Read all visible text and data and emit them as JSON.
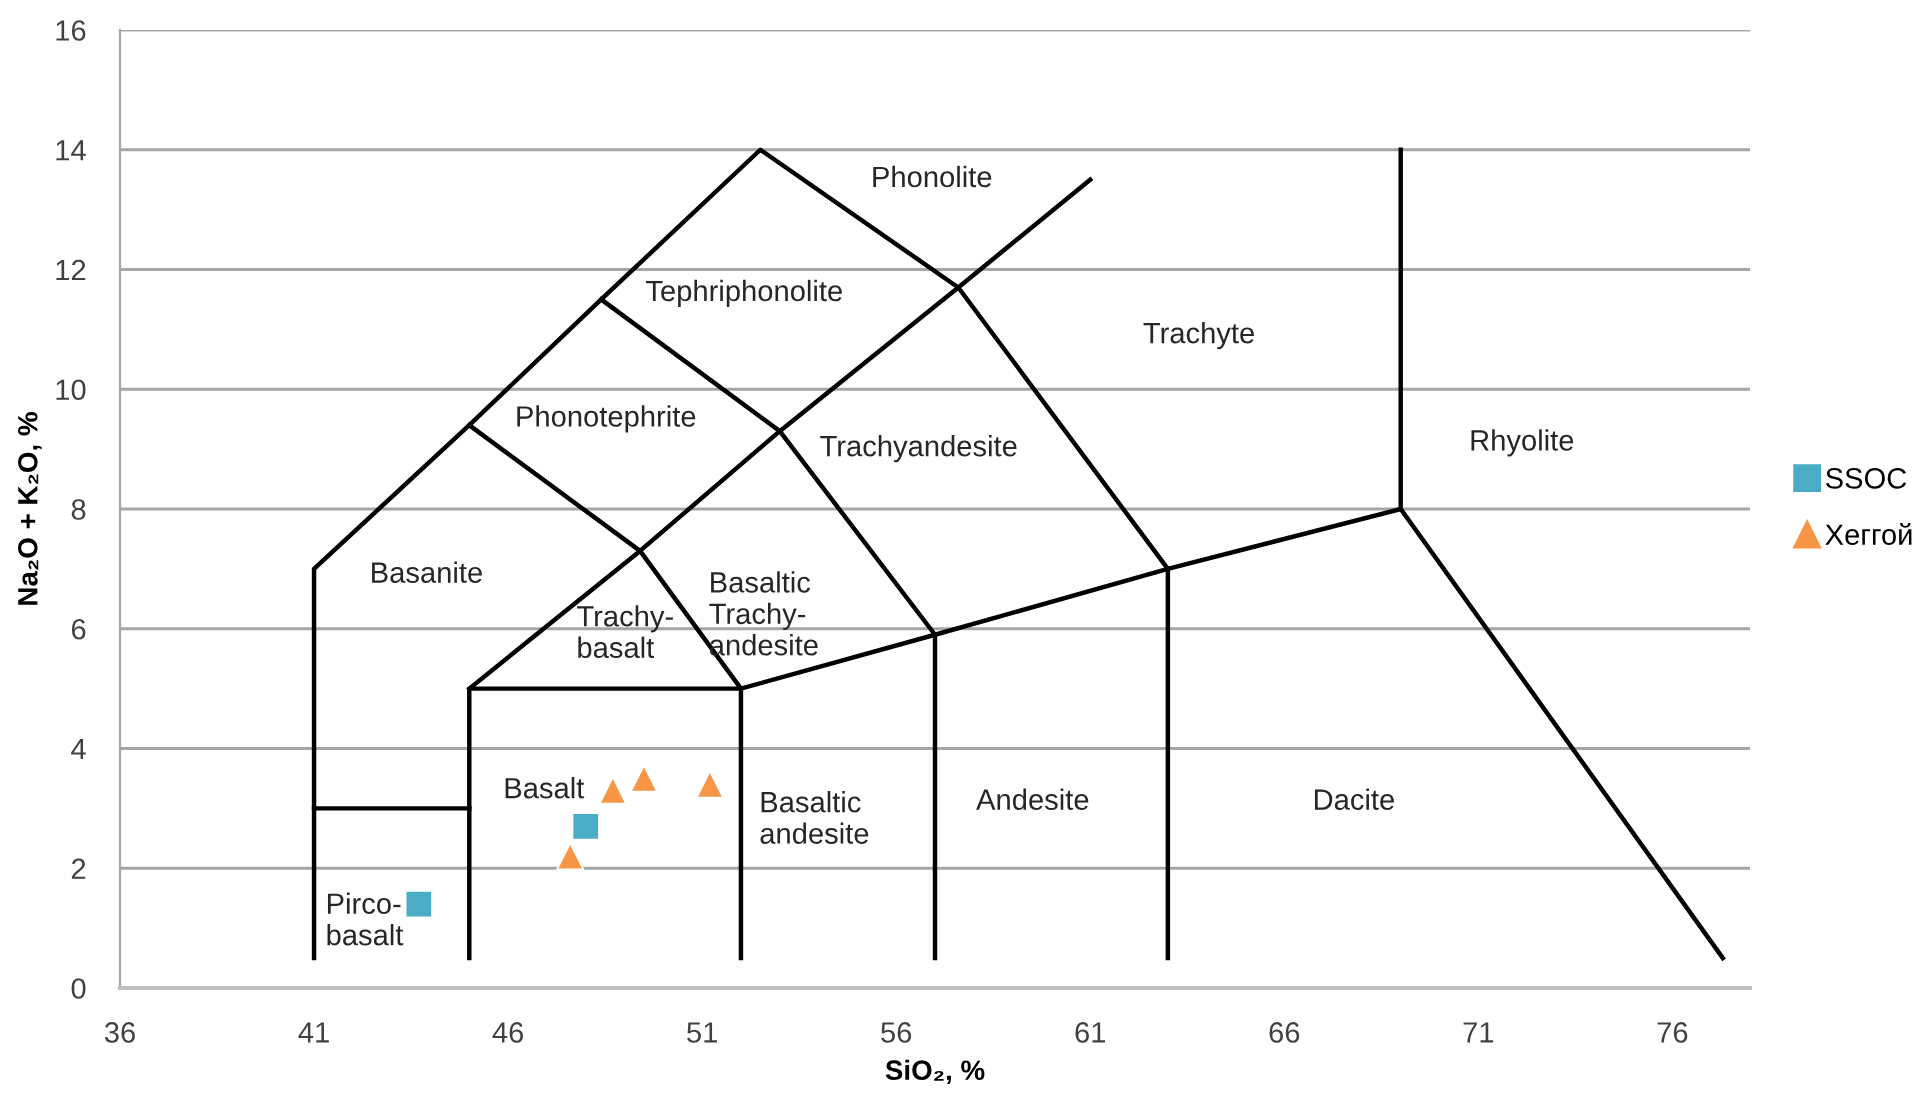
{
  "chart_data": {
    "type": "scatter",
    "xlabel": "SiO₂, %",
    "ylabel": "Na₂O + K₂O, %",
    "xlim": [
      36,
      78
    ],
    "xticks": [
      36,
      41,
      46,
      51,
      56,
      61,
      66,
      71,
      76
    ],
    "ylim": [
      0,
      16
    ],
    "yticks": [
      0,
      2,
      4,
      6,
      8,
      10,
      12,
      14,
      16
    ],
    "grid": "y",
    "legend": "right",
    "series": [
      {
        "type": "line",
        "color": "#000000",
        "x": [
          41,
          41,
          45,
          48.4,
          52.5,
          57.6,
          63,
          63
        ],
        "values": [
          0.5,
          7,
          9.4,
          11.5,
          14,
          11.7,
          7,
          0.5
        ]
      },
      {
        "type": "line",
        "color": "#000000",
        "x": [
          41,
          45
        ],
        "values": [
          3,
          3
        ]
      },
      {
        "type": "line",
        "color": "#000000",
        "x": [
          45,
          45,
          52,
          52
        ],
        "values": [
          0.5,
          5,
          5,
          0.5
        ]
      },
      {
        "type": "line",
        "color": "#000000",
        "x": [
          45,
          49.4,
          53,
          57.6,
          61
        ],
        "values": [
          5,
          7.3,
          9.3,
          11.7,
          13.5
        ]
      },
      {
        "type": "line",
        "color": "#000000",
        "x": [
          52,
          57,
          63,
          69,
          77.3
        ],
        "values": [
          5,
          5.9,
          7,
          8,
          0.5
        ]
      },
      {
        "type": "line",
        "color": "#000000",
        "x": [
          57,
          57
        ],
        "values": [
          0.5,
          5.9
        ]
      },
      {
        "type": "line",
        "color": "#000000",
        "x": [
          69,
          69
        ],
        "values": [
          8,
          14
        ]
      },
      {
        "type": "line",
        "color": "#000000",
        "x": [
          52,
          49.4,
          45
        ],
        "values": [
          5,
          7.3,
          9.4
        ]
      },
      {
        "type": "line",
        "color": "#000000",
        "x": [
          57,
          53,
          48.4
        ],
        "values": [
          5.9,
          9.3,
          11.5
        ]
      },
      {
        "name": "SSOC",
        "color": "#4bacc6",
        "marker": "square",
        "x": [
          43.7,
          48.0
        ],
        "values": [
          1.4,
          2.7
        ]
      },
      {
        "name": "Хеггой",
        "color": "#f79646",
        "marker": "triangle",
        "x": [
          47.6,
          48.7,
          49.5,
          51.2
        ],
        "values": [
          2.2,
          3.3,
          3.5,
          3.4
        ]
      }
    ],
    "annotations": [
      "Phonolite",
      "Tephriphonolite",
      "Phonotephrite",
      "Trachyte",
      "Trachyandesite",
      "Rhyolite",
      "Basanite",
      "Trachy-\nbasalt",
      "Basaltic\nTrachy-\nandesite",
      "Basalt",
      "Basaltic\nandesite",
      "Andesite",
      "Dacite",
      "Pirco-\nbasalt"
    ]
  }
}
